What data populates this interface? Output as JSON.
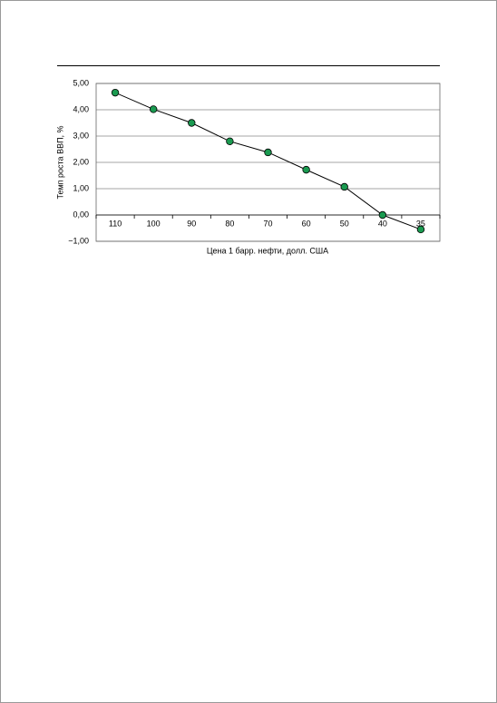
{
  "chart_data": {
    "type": "line",
    "categories": [
      "110",
      "100",
      "90",
      "80",
      "70",
      "60",
      "50",
      "40",
      "35"
    ],
    "values": [
      4.65,
      4.02,
      3.5,
      2.8,
      2.38,
      1.72,
      1.07,
      0.0,
      -0.55
    ],
    "color": "#1a9a50",
    "x_label": "Цена 1 барр. нефти, долл. США",
    "y_label": "Темп роста ВВП, %",
    "ylim": [
      -1,
      5
    ],
    "yticks": [
      {
        "value": -1,
        "label": "−1,00"
      },
      {
        "value": 0,
        "label": "0,00"
      },
      {
        "value": 1,
        "label": "1,00"
      },
      {
        "value": 2,
        "label": "2,00"
      },
      {
        "value": 3,
        "label": "3,00"
      },
      {
        "value": 4,
        "label": "4,00"
      },
      {
        "value": 5,
        "label": "5,00"
      }
    ],
    "grid": true
  }
}
